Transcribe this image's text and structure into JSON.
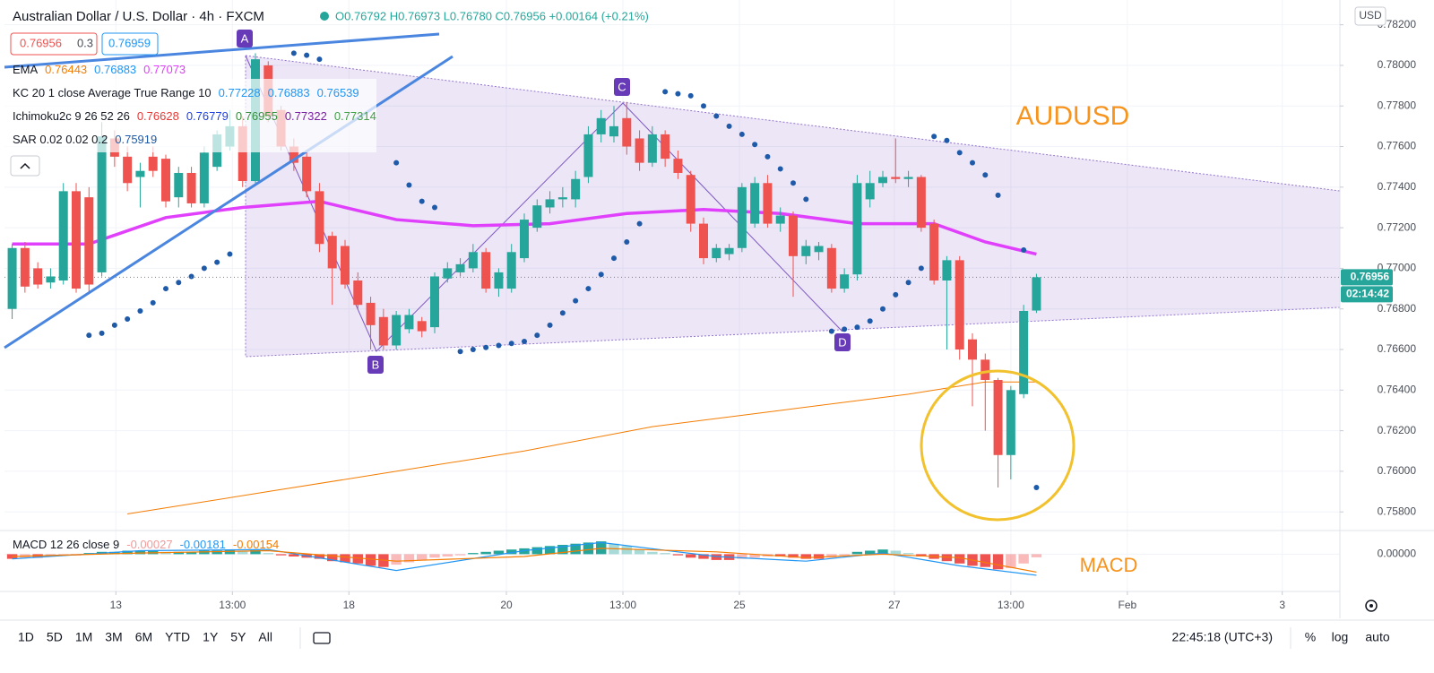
{
  "chart_data": {
    "type": "candlestick",
    "title": "Australian Dollar / U.S. Dollar · 4h · FXCM",
    "ohlc_text": "O0.76792 H0.76973 L0.76780 C0.76956 +0.00164 (+0.21%)",
    "bid": "0.76956",
    "spread": "0.3",
    "ask": "0.76959",
    "indicators": [
      {
        "label": "EMA",
        "values": [
          "0.76443",
          "0.76883",
          "0.77073"
        ],
        "colors": [
          "#f57c00",
          "#2196f3",
          "#e040fb"
        ]
      },
      {
        "label": "KC 20 1 close Average True Range 10",
        "values": [
          "0.77228",
          "0.76883",
          "0.76539"
        ],
        "colors": [
          "#2196f3",
          "#2196f3",
          "#2196f3"
        ]
      },
      {
        "label": "Ichimoku2c 9 26 52 26",
        "values": [
          "0.76628",
          "0.76779",
          "0.76955",
          "0.77322",
          "0.77314"
        ],
        "colors": [
          "#e53935",
          "#1e40e0",
          "#388e3c",
          "#7b1fa2",
          "#43a047"
        ]
      },
      {
        "label": "SAR 0.02 0.02 0.2",
        "values": [
          "0.75919"
        ],
        "colors": [
          "#1e5aa8"
        ]
      }
    ],
    "up_color": "#26a69a",
    "down_color": "#ef5350",
    "open": [
      0.768,
      0.771,
      0.77,
      0.7693,
      0.7694,
      0.7738,
      0.7735,
      0.7698,
      0.7764,
      0.7755,
      0.7745,
      0.7755,
      0.7754,
      0.7735,
      0.7747,
      0.7732,
      0.775,
      0.776,
      0.777,
      0.7743,
      0.78,
      0.7778,
      0.776,
      0.7755,
      0.7738,
      0.7716,
      0.7711,
      0.7694,
      0.7683,
      0.7676,
      0.7662,
      0.767,
      0.7674,
      0.7671,
      0.7695,
      0.7698,
      0.77,
      0.7708,
      0.769,
      0.769,
      0.7705,
      0.772,
      0.773,
      0.7734,
      0.7734,
      0.7745,
      0.7766,
      0.7765,
      0.7774,
      0.7764,
      0.7752,
      0.7766,
      0.7754,
      0.7746,
      0.7722,
      0.7705,
      0.7707,
      0.771,
      0.7722,
      0.7742,
      0.7722,
      0.7726,
      0.7706,
      0.7708,
      0.771,
      0.769,
      0.7697,
      0.7734,
      0.7742,
      0.7745,
      0.7744,
      0.7745,
      0.7722,
      0.7694,
      0.7704,
      0.7665,
      0.7655,
      0.7645,
      0.7608,
      0.7638,
      0.76792
    ],
    "high": [
      0.7712,
      0.7713,
      0.7703,
      0.77,
      0.7742,
      0.7742,
      0.774,
      0.7772,
      0.7768,
      0.776,
      0.7752,
      0.776,
      0.7756,
      0.775,
      0.775,
      0.776,
      0.7768,
      0.7778,
      0.7775,
      0.7806,
      0.7802,
      0.778,
      0.7764,
      0.7758,
      0.7742,
      0.7718,
      0.7714,
      0.7698,
      0.7686,
      0.768,
      0.7679,
      0.768,
      0.7676,
      0.7698,
      0.7703,
      0.7705,
      0.7712,
      0.771,
      0.77,
      0.7712,
      0.7727,
      0.7734,
      0.7738,
      0.774,
      0.7748,
      0.777,
      0.7778,
      0.778,
      0.7782,
      0.7768,
      0.777,
      0.7768,
      0.7758,
      0.7748,
      0.7725,
      0.7712,
      0.7712,
      0.7742,
      0.7745,
      0.7746,
      0.773,
      0.7728,
      0.7714,
      0.7713,
      0.7712,
      0.77,
      0.7746,
      0.7748,
      0.7748,
      0.7764,
      0.7748,
      0.7746,
      0.7724,
      0.7706,
      0.7706,
      0.7668,
      0.7658,
      0.7646,
      0.7642,
      0.7682,
      0.76973
    ],
    "low": [
      0.7675,
      0.7688,
      0.769,
      0.769,
      0.7692,
      0.7688,
      0.7688,
      0.7696,
      0.775,
      0.7738,
      0.773,
      0.7745,
      0.773,
      0.773,
      0.773,
      0.773,
      0.7748,
      0.7758,
      0.774,
      0.7742,
      0.7772,
      0.7758,
      0.7748,
      0.7735,
      0.7708,
      0.7682,
      0.769,
      0.768,
      0.766,
      0.766,
      0.766,
      0.7668,
      0.7666,
      0.7668,
      0.7693,
      0.7696,
      0.7698,
      0.7688,
      0.7686,
      0.7688,
      0.7703,
      0.7718,
      0.7727,
      0.773,
      0.773,
      0.7742,
      0.7762,
      0.7762,
      0.7756,
      0.7748,
      0.775,
      0.775,
      0.7744,
      0.7718,
      0.7702,
      0.7703,
      0.7704,
      0.7708,
      0.772,
      0.772,
      0.7718,
      0.7686,
      0.7702,
      0.7704,
      0.7688,
      0.7688,
      0.7694,
      0.773,
      0.774,
      0.7742,
      0.774,
      0.7718,
      0.7692,
      0.766,
      0.7655,
      0.7632,
      0.762,
      0.7592,
      0.7596,
      0.7636,
      0.7678
    ],
    "close": [
      0.771,
      0.7691,
      0.7692,
      0.7696,
      0.7738,
      0.769,
      0.7692,
      0.7765,
      0.7755,
      0.7742,
      0.7748,
      0.7748,
      0.7733,
      0.7747,
      0.7732,
      0.7757,
      0.7766,
      0.777,
      0.7743,
      0.7803,
      0.7775,
      0.776,
      0.7752,
      0.7738,
      0.7712,
      0.77,
      0.7692,
      0.7682,
      0.7672,
      0.7662,
      0.7677,
      0.7677,
      0.7669,
      0.7696,
      0.77,
      0.7702,
      0.7708,
      0.769,
      0.7698,
      0.7708,
      0.7724,
      0.7731,
      0.7734,
      0.7735,
      0.7744,
      0.7766,
      0.7774,
      0.777,
      0.776,
      0.7752,
      0.7766,
      0.7754,
      0.7747,
      0.7722,
      0.7705,
      0.771,
      0.771,
      0.774,
      0.7742,
      0.7722,
      0.7726,
      0.7706,
      0.7711,
      0.7711,
      0.769,
      0.7697,
      0.7742,
      0.7742,
      0.7745,
      0.7744,
      0.7745,
      0.772,
      0.7694,
      0.7704,
      0.766,
      0.7655,
      0.7645,
      0.7608,
      0.764,
      0.7679,
      0.76956
    ],
    "series": [
      {
        "color": "#e040fb",
        "width": 3.5,
        "x": [
          0,
          6,
          12,
          18,
          24,
          30,
          36,
          42,
          48,
          54,
          60,
          66,
          72,
          76,
          80
        ],
        "values": [
          0.7712,
          0.7712,
          0.7725,
          0.773,
          0.7733,
          0.7724,
          0.7721,
          0.7722,
          0.7727,
          0.7729,
          0.7727,
          0.7722,
          0.7722,
          0.7713,
          0.7707
        ]
      },
      {
        "color": "#f57c00",
        "width": 1,
        "x": [
          9,
          20,
          30,
          40,
          50,
          60,
          70,
          76,
          80
        ],
        "values": [
          0.7579,
          0.759,
          0.76,
          0.761,
          0.7622,
          0.763,
          0.7638,
          0.7644,
          0.7644
        ]
      }
    ],
    "sar": {
      "color": "#1e5aa8",
      "x": [
        6,
        7,
        8,
        9,
        10,
        11,
        12,
        13,
        14,
        15,
        16,
        17,
        22,
        23,
        24,
        30,
        31,
        32,
        33,
        35,
        36,
        37,
        38,
        39,
        40,
        41,
        42,
        43,
        44,
        45,
        46,
        47,
        48,
        49,
        51,
        52,
        53,
        54,
        55,
        56,
        57,
        58,
        59,
        60,
        61,
        62,
        64,
        65,
        66,
        67,
        68,
        69,
        70,
        71,
        72,
        73,
        74,
        75,
        76,
        77,
        79,
        80
      ],
      "values": [
        0.7667,
        0.7668,
        0.7672,
        0.7675,
        0.7679,
        0.7683,
        0.769,
        0.7693,
        0.7696,
        0.77,
        0.7703,
        0.7707,
        0.7806,
        0.7805,
        0.7803,
        0.7752,
        0.7741,
        0.7733,
        0.773,
        0.7659,
        0.766,
        0.7661,
        0.7662,
        0.7663,
        0.7664,
        0.7667,
        0.7672,
        0.7678,
        0.7684,
        0.769,
        0.7697,
        0.7705,
        0.7713,
        0.7722,
        0.7787,
        0.7786,
        0.7785,
        0.778,
        0.7775,
        0.777,
        0.7766,
        0.7761,
        0.7755,
        0.7749,
        0.7742,
        0.7734,
        0.7669,
        0.767,
        0.7671,
        0.7674,
        0.768,
        0.7687,
        0.7693,
        0.77,
        0.7765,
        0.7763,
        0.7757,
        0.7752,
        0.7746,
        0.7736,
        0.7709,
        0.7592
      ]
    },
    "xlim": [
      -0.6,
      103.7
    ],
    "ylim": [
      0.75717,
      0.78322
    ],
    "yticks": [
      {
        "value": 0.758,
        "label": "0.75800"
      },
      {
        "value": 0.76,
        "label": "0.76000"
      },
      {
        "value": 0.762,
        "label": "0.76200"
      },
      {
        "value": 0.764,
        "label": "0.76400"
      },
      {
        "value": 0.766,
        "label": "0.76600"
      },
      {
        "value": 0.768,
        "label": "0.76800"
      },
      {
        "value": 0.77,
        "label": "0.77000"
      },
      {
        "value": 0.772,
        "label": "0.77200"
      },
      {
        "value": 0.774,
        "label": "0.77400"
      },
      {
        "value": 0.776,
        "label": "0.77600"
      },
      {
        "value": 0.778,
        "label": "0.77800"
      },
      {
        "value": 0.78,
        "label": "0.78000"
      },
      {
        "value": 0.782,
        "label": "0.78200"
      }
    ],
    "xticks": [
      {
        "value": 8.1,
        "label": "13"
      },
      {
        "value": 17.2,
        "label": "13:00"
      },
      {
        "value": 26.3,
        "label": "18"
      },
      {
        "value": 38.6,
        "label": "20"
      },
      {
        "value": 47.7,
        "label": "13:00"
      },
      {
        "value": 56.8,
        "label": "25"
      },
      {
        "value": 68.9,
        "label": "27"
      },
      {
        "value": 78,
        "label": "13:00"
      },
      {
        "value": 87.1,
        "label": "Feb"
      },
      {
        "value": 99.2,
        "label": "3"
      }
    ],
    "grid": true,
    "last_price_label": "0.76956",
    "countdown": "02:14:42",
    "currency": "USD",
    "annotations": [
      "AUDUSD",
      "MACD"
    ],
    "pattern_points": [
      "A",
      "B",
      "C",
      "D"
    ],
    "macd": {
      "label": "MACD 12 26 close 9",
      "legend_values": [
        "-0.00027",
        "-0.00181",
        "-0.00154"
      ],
      "legend_colors": [
        "#ef9a9a",
        "#2196f3",
        "#f57c00"
      ],
      "ylim": [
        -0.0032,
        0.0018
      ],
      "yticks": [
        {
          "value": 0,
          "label": "0.00000"
        }
      ],
      "histogram": [
        -0.0004,
        -0.0003,
        -0.0003,
        -0.0002,
        -0.0001,
        -0.0001,
        0.0001,
        0.0002,
        0.0002,
        0.0003,
        0.0003,
        0.0003,
        0.0002,
        0.0002,
        0.0002,
        0.0003,
        0.0003,
        0.0004,
        0.0003,
        0.0004,
        0.0001,
        -0.0001,
        -0.0002,
        -0.0003,
        -0.0004,
        -0.0006,
        -0.0007,
        -0.0008,
        -0.001,
        -0.0011,
        -0.0009,
        -0.0007,
        -0.0005,
        -0.0003,
        -0.0002,
        -0.0001,
        0.0001,
        0.0002,
        0.0003,
        0.0004,
        0.0005,
        0.0006,
        0.0007,
        0.0008,
        0.0009,
        0.001,
        0.0011,
        0.0009,
        0.0007,
        0.0004,
        0.0002,
        0.0001,
        -0.0001,
        -0.0003,
        -0.0004,
        -0.0005,
        -0.0005,
        -0.0004,
        -0.0003,
        -0.0002,
        -0.0002,
        -0.0003,
        -0.0004,
        -0.0004,
        -0.0003,
        -0.0001,
        0.0002,
        0.0003,
        0.0004,
        0.0003,
        0.0001,
        -0.0002,
        -0.0004,
        -0.0006,
        -0.0008,
        -0.001,
        -0.0011,
        -0.0013,
        -0.0012,
        -0.0008,
        -0.00027
      ],
      "lines": [
        {
          "color": "#2196f3",
          "x": [
            0,
            10,
            20,
            30,
            40,
            46,
            55,
            62,
            68,
            74,
            80
          ],
          "values": [
            -0.0004,
            0.0003,
            0.0004,
            -0.0014,
            0.0003,
            0.001,
            -0.0002,
            -0.0006,
            0.0001,
            -0.001,
            -0.00181
          ]
        },
        {
          "color": "#f57c00",
          "x": [
            0,
            10,
            20,
            30,
            40,
            46,
            55,
            62,
            68,
            74,
            80
          ],
          "values": [
            -0.0002,
            0.0001,
            0.0003,
            -0.0006,
            -0.0002,
            0.0005,
            0.0002,
            -0.0003,
            0.0,
            -0.0003,
            -0.00154
          ]
        }
      ]
    },
    "ranges": [
      "1D",
      "5D",
      "1M",
      "3M",
      "6M",
      "YTD",
      "1Y",
      "5Y",
      "All"
    ],
    "clock": "22:45:18 (UTC+3)",
    "axis_modes": [
      "%",
      "log",
      "auto"
    ]
  }
}
